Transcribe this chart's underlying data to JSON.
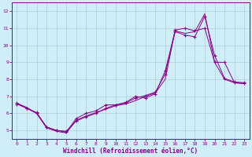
{
  "xlabel": "Windchill (Refroidissement éolien,°C)",
  "background_color": "#d0eef8",
  "line_color": "#880088",
  "grid_color": "#b0ccd8",
  "xlim": [
    -0.5,
    23.5
  ],
  "ylim": [
    4.5,
    12.5
  ],
  "xticks": [
    0,
    1,
    2,
    3,
    4,
    5,
    6,
    7,
    8,
    9,
    10,
    11,
    12,
    13,
    14,
    15,
    16,
    17,
    18,
    19,
    20,
    21,
    22,
    23
  ],
  "yticks": [
    5,
    6,
    7,
    8,
    9,
    10,
    11,
    12
  ],
  "series1_x": [
    0,
    1,
    2,
    3,
    4,
    5,
    6,
    7,
    8,
    9,
    10,
    11,
    12,
    13,
    14,
    15,
    16,
    17,
    18,
    19,
    20,
    21,
    22,
    23
  ],
  "series1_y": [
    6.6,
    6.35,
    6.0,
    5.15,
    4.95,
    4.85,
    5.6,
    5.85,
    6.05,
    6.25,
    6.45,
    6.55,
    6.75,
    7.0,
    7.2,
    8.0,
    10.85,
    10.7,
    10.8,
    11.85,
    9.0,
    8.0,
    7.8,
    7.75
  ],
  "series2_x": [
    0,
    1,
    2,
    3,
    4,
    5,
    6,
    7,
    8,
    9,
    10,
    11,
    12,
    13,
    14,
    15,
    16,
    17,
    18,
    19,
    20,
    21,
    22,
    23
  ],
  "series2_y": [
    6.6,
    6.3,
    6.05,
    5.2,
    5.0,
    4.9,
    5.7,
    6.0,
    6.15,
    6.5,
    6.5,
    6.65,
    7.0,
    6.9,
    7.15,
    8.5,
    10.8,
    10.6,
    10.5,
    11.7,
    9.4,
    8.05,
    7.85,
    7.8
  ],
  "series3_x": [
    0,
    1,
    2,
    3,
    4,
    5,
    6,
    7,
    8,
    9,
    10,
    11,
    12,
    13,
    14,
    15,
    16,
    17,
    18,
    19,
    20,
    21,
    22,
    23
  ],
  "series3_y": [
    6.55,
    6.3,
    6.0,
    5.2,
    5.0,
    4.95,
    5.55,
    5.8,
    6.0,
    6.3,
    6.5,
    6.6,
    6.9,
    7.05,
    7.25,
    8.3,
    10.9,
    11.0,
    10.85,
    11.0,
    9.0,
    9.0,
    7.8,
    7.75
  ]
}
